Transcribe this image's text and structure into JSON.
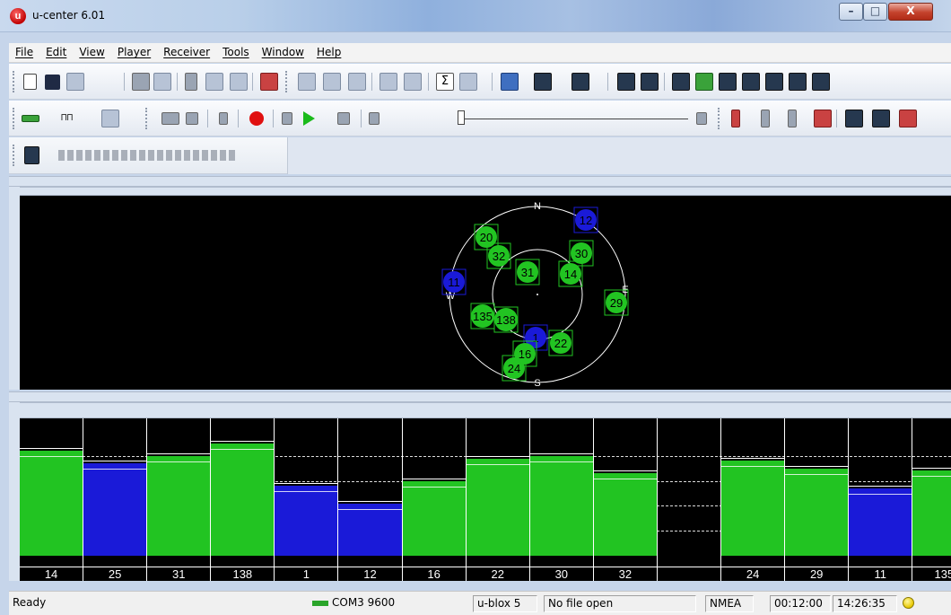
{
  "window": {
    "title": "u-center 6.01"
  },
  "menu": [
    "File",
    "Edit",
    "View",
    "Player",
    "Receiver",
    "Tools",
    "Window",
    "Help"
  ],
  "sky": {
    "compass": {
      "n": "N",
      "e": "E",
      "s": "S",
      "w": "W"
    },
    "satellites": [
      {
        "prn": "12",
        "color": "#1a1ad8"
      },
      {
        "prn": "20",
        "color": "#22c422"
      },
      {
        "prn": "32",
        "color": "#22c422"
      },
      {
        "prn": "30",
        "color": "#22c422"
      },
      {
        "prn": "31",
        "color": "#22c422"
      },
      {
        "prn": "14",
        "color": "#22c422"
      },
      {
        "prn": "11",
        "color": "#1a1ad8"
      },
      {
        "prn": "29",
        "color": "#22c422"
      },
      {
        "prn": "135",
        "color": "#22c422"
      },
      {
        "prn": "138",
        "color": "#22c422"
      },
      {
        "prn": "1",
        "color": "#1a1ad8"
      },
      {
        "prn": "22",
        "color": "#22c422"
      },
      {
        "prn": "16",
        "color": "#22c422"
      },
      {
        "prn": "24",
        "color": "#22c422"
      }
    ]
  },
  "chart_data": {
    "type": "bar",
    "title": "",
    "categories": [
      "14",
      "25",
      "31",
      "138",
      "1",
      "12",
      "16",
      "22",
      "30",
      "32",
      "",
      "24",
      "29",
      "11",
      "135"
    ],
    "values": [
      42,
      37,
      40,
      45,
      28,
      21,
      30,
      39,
      40,
      33,
      null,
      38,
      35,
      27,
      34
    ],
    "colors": [
      "#22c422",
      "#1a1ad8",
      "#22c422",
      "#22c422",
      "#1a1ad8",
      "#1a1ad8",
      "#22c422",
      "#22c422",
      "#22c422",
      "#22c422",
      null,
      "#22c422",
      "#22c422",
      "#1a1ad8",
      "#22c422"
    ],
    "ylim": [
      0,
      55
    ]
  },
  "status": {
    "ready": "Ready",
    "port": "COM3 9600",
    "receiver": "u-blox 5",
    "file": "No file open",
    "protocol": "NMEA",
    "elapsed": "00:12:00",
    "clock": "14:26:35"
  }
}
